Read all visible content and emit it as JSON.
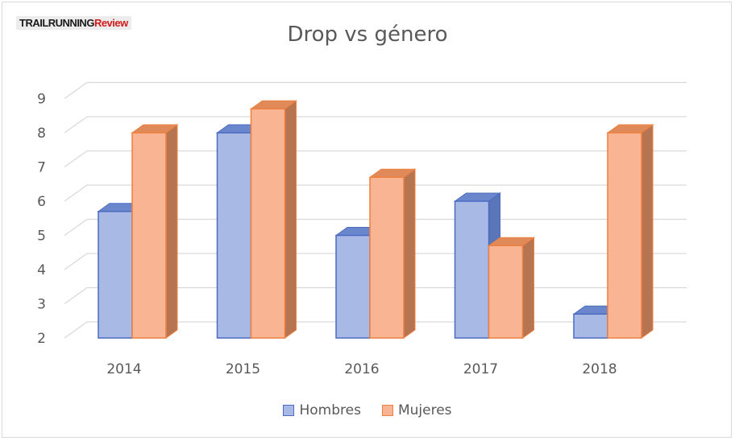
{
  "logo": {
    "part1": "TRAILRUNNING",
    "part2": "Review"
  },
  "chart_data": {
    "type": "bar",
    "title": "Drop vs género",
    "categories": [
      "2014",
      "2015",
      "2016",
      "2017",
      "2018"
    ],
    "series": [
      {
        "name": "Hombres",
        "values": [
          5.7,
          8.0,
          5.0,
          6.0,
          2.7
        ]
      },
      {
        "name": "Mujeres",
        "values": [
          8.0,
          8.7,
          6.7,
          4.7,
          8.0
        ]
      }
    ],
    "yticks": [
      "2",
      "3",
      "4",
      "5",
      "6",
      "7",
      "8",
      "9"
    ],
    "ylim": [
      2,
      9
    ],
    "grid": true,
    "legend": "bottom",
    "colors": {
      "hombres_front": "#a9b9e6",
      "hombres_edge": "#4a6bc0",
      "hombres_side": "#5a76b8",
      "mujeres_front": "#f8b493",
      "mujeres_edge": "#ee8040",
      "mujeres_side": "#b77451"
    }
  }
}
